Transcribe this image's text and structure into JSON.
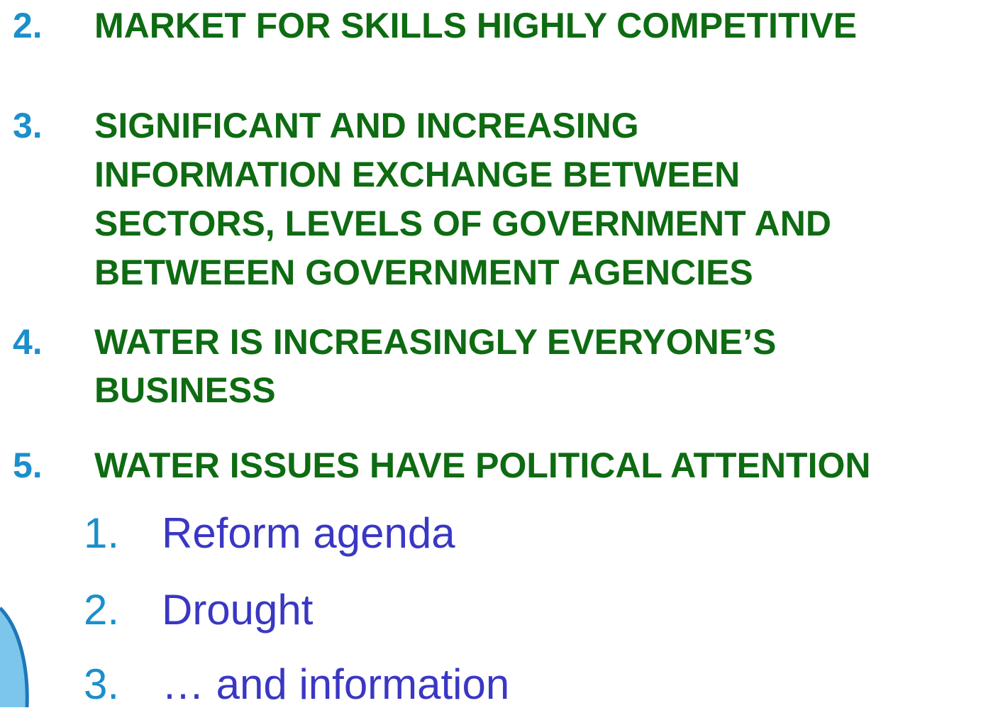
{
  "items": [
    {
      "number": "2.",
      "lines": [
        "MARKET FOR SKILLS HIGHLY COMPETITIVE"
      ]
    },
    {
      "number": "3.",
      "lines": [
        "SIGNIFICANT AND INCREASING",
        "INFORMATION EXCHANGE BETWEEN",
        "SECTORS, LEVELS OF GOVERNMENT AND",
        "BETWEEEN GOVERNMENT AGENCIES"
      ]
    },
    {
      "number": "4.",
      "lines": [
        "WATER IS INCREASINGLY EVERYONE’S",
        "BUSINESS"
      ]
    },
    {
      "number": "5.",
      "lines": [
        "WATER ISSUES HAVE POLITICAL ATTENTION"
      ]
    }
  ],
  "subitems": [
    {
      "number": "1.",
      "text": "Reform agenda"
    },
    {
      "number": "2.",
      "text": "Drought"
    },
    {
      "number": "3.",
      "text": "… and information"
    }
  ]
}
